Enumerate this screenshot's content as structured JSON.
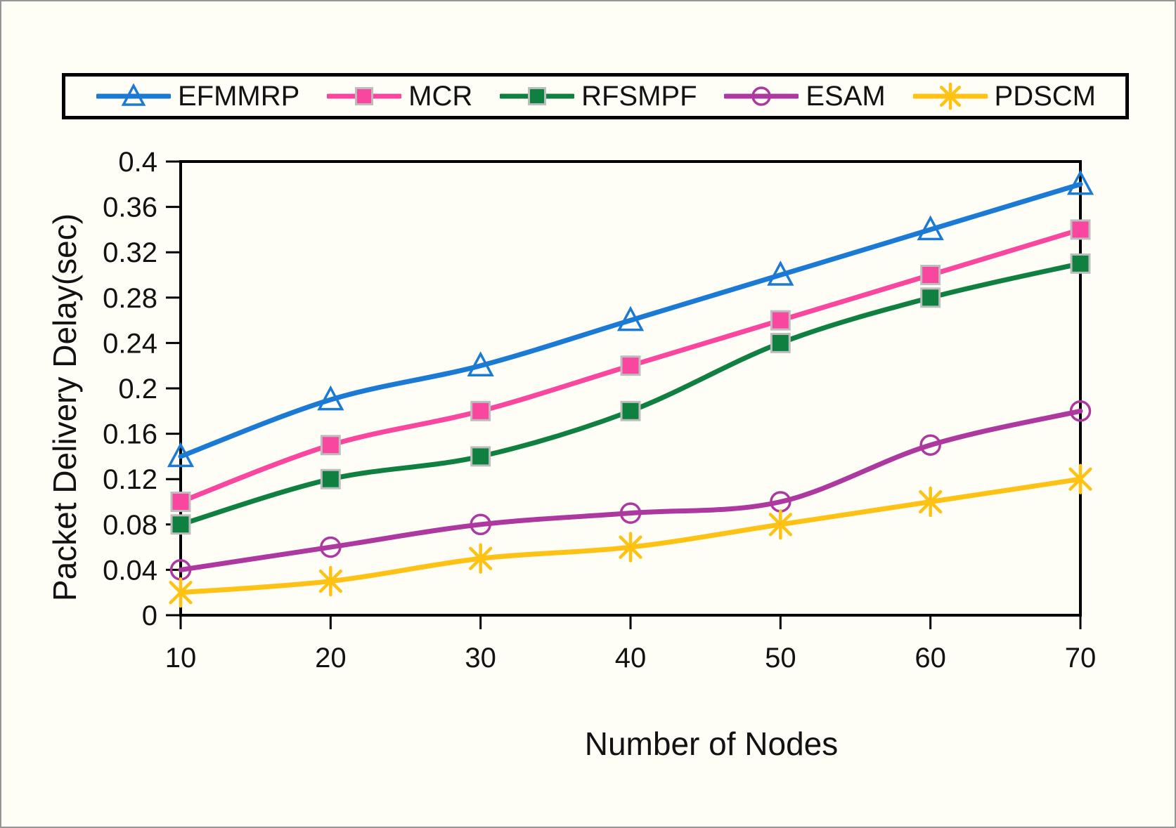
{
  "figure": {
    "background": "#fefdf6",
    "border_color": "#959595",
    "text_color": "#121212",
    "axis_color": "#000000",
    "marker_outline": "#bdbdbd"
  },
  "chart_data": {
    "type": "line",
    "title": "",
    "xlabel": "Number of Nodes",
    "ylabel": "Packet Delivery Delay(sec)",
    "x": [
      10,
      20,
      30,
      40,
      50,
      60,
      70
    ],
    "xtick_labels": [
      "10",
      "20",
      "30",
      "40",
      "50",
      "60",
      "70"
    ],
    "xlim": [
      10,
      70
    ],
    "ylim": [
      0,
      0.4
    ],
    "yticks": [
      {
        "value": 0.4,
        "label": "0.4"
      },
      {
        "value": 0.36,
        "label": "0.36"
      },
      {
        "value": 0.32,
        "label": "0.32"
      },
      {
        "value": 0.28,
        "label": "0.28"
      },
      {
        "value": 0.24,
        "label": "0.24"
      },
      {
        "value": 0.2,
        "label": "0.2"
      },
      {
        "value": 0.16,
        "label": "0.16"
      },
      {
        "value": 0.12,
        "label": "0.12"
      },
      {
        "value": 0.08,
        "label": "0.08"
      },
      {
        "value": 0.04,
        "label": "0.04"
      },
      {
        "value": 0,
        "label": "0"
      }
    ],
    "grid": false,
    "legend_position": "top",
    "series": [
      {
        "name": "EFMMRP",
        "color": "#1a7ad4",
        "marker": "triangle-open",
        "values": [
          0.14,
          0.19,
          0.22,
          0.26,
          0.3,
          0.34,
          0.38
        ]
      },
      {
        "name": "MCR",
        "color": "#f9469f",
        "marker": "square",
        "values": [
          0.1,
          0.15,
          0.18,
          0.22,
          0.26,
          0.3,
          0.34
        ]
      },
      {
        "name": "RFSMPF",
        "color": "#108040",
        "marker": "square",
        "values": [
          0.08,
          0.12,
          0.14,
          0.18,
          0.24,
          0.28,
          0.31
        ]
      },
      {
        "name": "ESAM",
        "color": "#ac38a0",
        "marker": "circle-open",
        "values": [
          0.04,
          0.06,
          0.08,
          0.09,
          0.1,
          0.15,
          0.18
        ]
      },
      {
        "name": "PDSCM",
        "color": "#fdc214",
        "marker": "asterisk",
        "values": [
          0.02,
          0.03,
          0.05,
          0.06,
          0.08,
          0.1,
          0.12
        ]
      }
    ]
  }
}
